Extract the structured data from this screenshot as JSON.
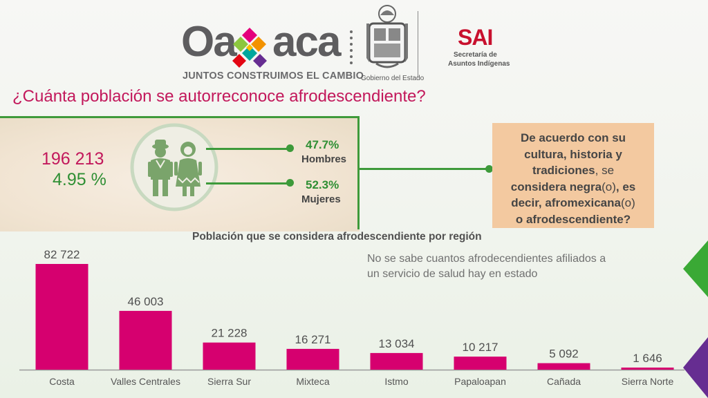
{
  "header": {
    "brand_left": "Oa",
    "brand_right": "aca",
    "slogan": "JUNTOS CONSTRUIMOS EL CAMBIO",
    "gov_caption": "Gobierno del Estado",
    "sai_name": "SAI",
    "sai_sub1": "Secretaría de",
    "sai_sub2": "Asuntos Indígenas"
  },
  "title": "¿Cuánta población se autorreconoce afrodescendiente?",
  "stats": {
    "total": "196 213",
    "percent": "4.95 %",
    "men_percent": "47.7%",
    "men_label": "Hombres",
    "women_percent": "52.3%",
    "women_label": "Mujeres"
  },
  "definition": {
    "line1": "De acuerdo con su",
    "line2": "cultura, historia y",
    "line3a": "tradiciones",
    "line3b": ", se",
    "line4a": "considera negra",
    "line4b": "(o)",
    "line4c": ", es",
    "line5a": "decir, afromexicana",
    "line5b": "(o)",
    "line6": "o afrodescendiente?"
  },
  "note": {
    "line1": "No se sabe cuantos afrodecendientes  afiliados a",
    "line2": "un servicio de salud hay en estado"
  },
  "colors": {
    "bar": "#d6006f",
    "accent_green": "#3d9a3a",
    "title_magenta": "#c2185b"
  },
  "chart_data": {
    "type": "bar",
    "title": "Población que se considera afrodescendiente por región",
    "categories": [
      "Costa",
      "Valles Centrales",
      "Sierra Sur",
      "Mixteca",
      "Istmo",
      "Papaloapan",
      "Cañada",
      "Sierra Norte"
    ],
    "values": [
      82722,
      46003,
      21228,
      16271,
      13034,
      10217,
      5092,
      1646
    ],
    "value_labels": [
      "82 722",
      "46 003",
      "21 228",
      "16 271",
      "13 034",
      "10 217",
      "5 092",
      "1 646"
    ],
    "ylim": [
      0,
      85000
    ],
    "grid": false,
    "legend": "none"
  }
}
